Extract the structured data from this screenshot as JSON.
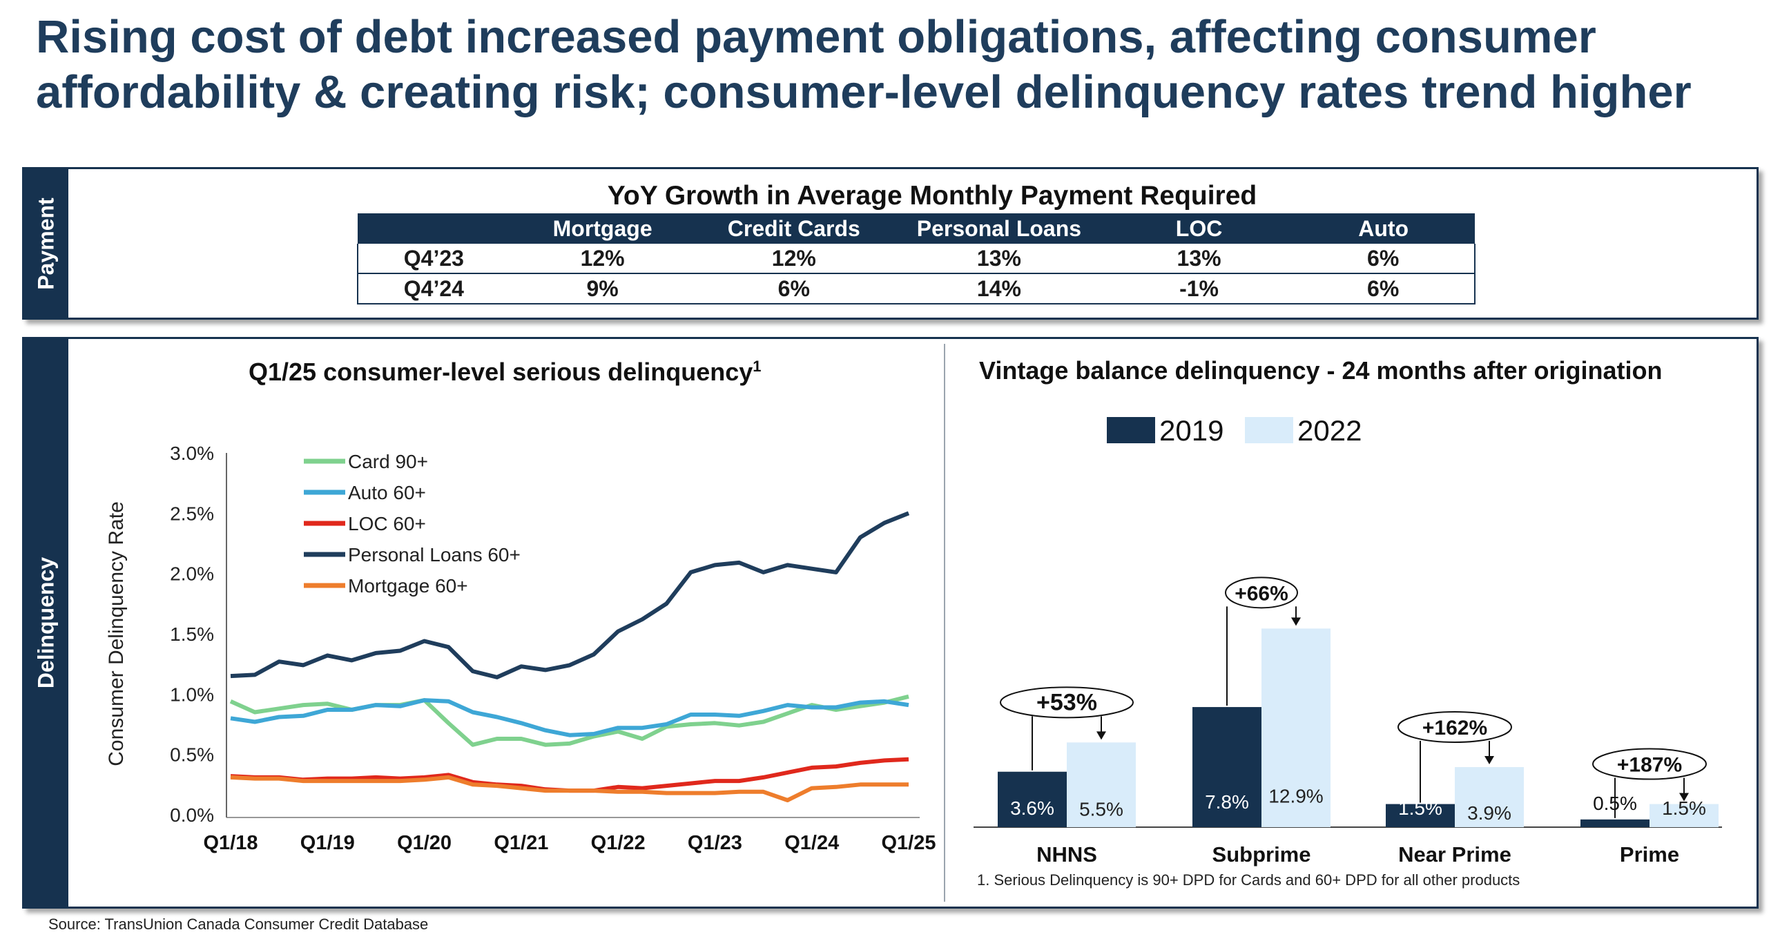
{
  "title": "Rising cost of debt increased payment obligations, affecting consumer affordability & creating risk; consumer-level delinquency rates trend higher",
  "payment_panel": {
    "side_label": "Payment",
    "table_title": "YoY Growth in Average Monthly Payment Required",
    "columns": [
      "",
      "Mortgage",
      "Credit Cards",
      "Personal Loans",
      "LOC",
      "Auto"
    ],
    "rows": [
      [
        "Q4’23",
        "12%",
        "12%",
        "13%",
        "13%",
        "6%"
      ],
      [
        "Q4’24",
        "9%",
        "6%",
        "14%",
        "-1%",
        "6%"
      ]
    ]
  },
  "delinquency_panel": {
    "side_label": "Delinquency",
    "left_title": "Q1/25 consumer-level serious delinquency",
    "left_title_sup": "1",
    "right_title": "Vintage balance delinquency - 24 months after origination",
    "footnote": "1. Serious Delinquency is 90+ DPD for Cards and 60+ DPD for all other products"
  },
  "source": "Source: TransUnion Canada Consumer Credit Database",
  "chart_data": [
    {
      "type": "line",
      "title": "Q1/25 consumer-level serious delinquency",
      "ylabel": "Consumer Delinquency Rate",
      "ylim": [
        0,
        3.0
      ],
      "yticks": [
        "0.0%",
        "0.5%",
        "1.0%",
        "1.5%",
        "2.0%",
        "2.5%",
        "3.0%"
      ],
      "xticks": [
        "Q1/18",
        "Q1/19",
        "Q1/20",
        "Q1/21",
        "Q1/22",
        "Q1/23",
        "Q1/24",
        "Q1/25"
      ],
      "x": [
        "Q1/18",
        "Q2/18",
        "Q3/18",
        "Q4/18",
        "Q1/19",
        "Q2/19",
        "Q3/19",
        "Q4/19",
        "Q1/20",
        "Q2/20",
        "Q3/20",
        "Q4/20",
        "Q1/21",
        "Q2/21",
        "Q3/21",
        "Q4/21",
        "Q1/22",
        "Q2/22",
        "Q3/22",
        "Q4/22",
        "Q1/23",
        "Q2/23",
        "Q3/23",
        "Q4/23",
        "Q1/24",
        "Q2/24",
        "Q3/24",
        "Q4/24",
        "Q1/25"
      ],
      "legend_position": "top-left",
      "series": [
        {
          "name": "Card 90+",
          "color": "#7fd18e",
          "values": [
            0.94,
            0.85,
            0.88,
            0.91,
            0.92,
            0.87,
            0.91,
            0.91,
            0.95,
            0.76,
            0.58,
            0.63,
            0.63,
            0.58,
            0.59,
            0.65,
            0.69,
            0.63,
            0.73,
            0.75,
            0.76,
            0.74,
            0.77,
            0.84,
            0.91,
            0.87,
            0.9,
            0.93,
            0.98
          ]
        },
        {
          "name": "Auto 60+",
          "color": "#3ea7d6",
          "values": [
            0.8,
            0.77,
            0.81,
            0.82,
            0.87,
            0.87,
            0.91,
            0.9,
            0.95,
            0.94,
            0.85,
            0.81,
            0.76,
            0.7,
            0.66,
            0.67,
            0.72,
            0.72,
            0.75,
            0.83,
            0.83,
            0.82,
            0.86,
            0.91,
            0.89,
            0.89,
            0.93,
            0.94,
            0.91
          ]
        },
        {
          "name": "LOC 60+",
          "color": "#e0281c",
          "values": [
            0.32,
            0.31,
            0.31,
            0.29,
            0.3,
            0.3,
            0.31,
            0.3,
            0.31,
            0.33,
            0.27,
            0.25,
            0.24,
            0.21,
            0.2,
            0.2,
            0.23,
            0.22,
            0.24,
            0.26,
            0.28,
            0.28,
            0.31,
            0.35,
            0.39,
            0.4,
            0.43,
            0.45,
            0.46
          ]
        },
        {
          "name": "Personal Loans  60+",
          "color": "#1f3d5c",
          "values": [
            1.15,
            1.16,
            1.27,
            1.24,
            1.32,
            1.28,
            1.34,
            1.36,
            1.44,
            1.39,
            1.19,
            1.14,
            1.23,
            1.2,
            1.24,
            1.33,
            1.52,
            1.62,
            1.75,
            2.01,
            2.07,
            2.09,
            2.01,
            2.07,
            2.04,
            2.01,
            2.3,
            2.42,
            2.5
          ]
        },
        {
          "name": "Mortgage 60+",
          "color": "#ee7d2c",
          "values": [
            0.31,
            0.3,
            0.3,
            0.28,
            0.28,
            0.28,
            0.28,
            0.28,
            0.29,
            0.31,
            0.25,
            0.24,
            0.22,
            0.2,
            0.2,
            0.2,
            0.19,
            0.19,
            0.18,
            0.18,
            0.18,
            0.19,
            0.19,
            0.12,
            0.22,
            0.23,
            0.25,
            0.25,
            0.25
          ]
        }
      ]
    },
    {
      "type": "bar",
      "title": "Vintage balance delinquency - 24 months after origination",
      "categories": [
        "NHNS",
        "Subprime",
        "Near Prime",
        "Prime"
      ],
      "ylim": [
        0,
        14
      ],
      "legend_position": "top",
      "series": [
        {
          "name": "2019",
          "color": "#16324f",
          "values": [
            3.6,
            7.8,
            1.5,
            0.5
          ],
          "labels": [
            "3.6%",
            "7.8%",
            "1.5%",
            "0.5%"
          ]
        },
        {
          "name": "2022",
          "color": "#d9ecfa",
          "values": [
            5.5,
            12.9,
            3.9,
            1.5
          ],
          "labels": [
            "5.5%",
            "12.9%",
            "3.9%",
            "1.5%"
          ]
        }
      ],
      "annotations": [
        "+53%",
        "+66%",
        "+162%",
        "+187%"
      ]
    }
  ]
}
